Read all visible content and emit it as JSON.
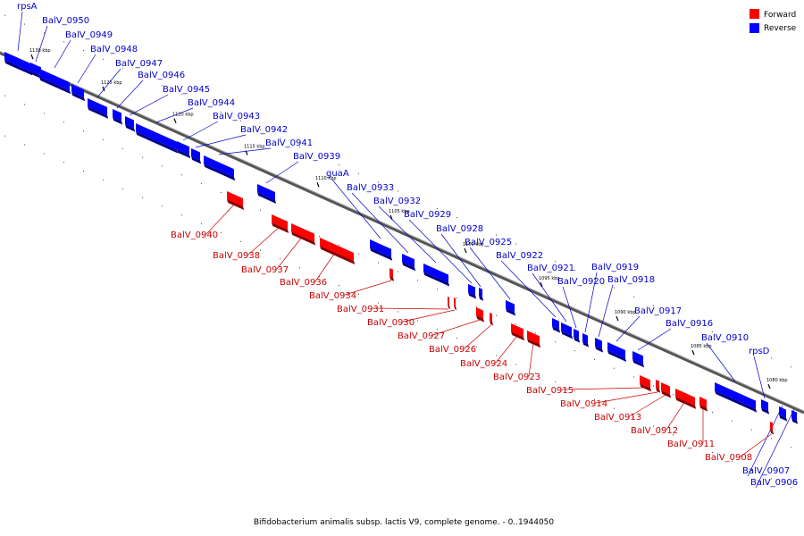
{
  "caption": "Bifidobacterium animalis subsp. lactis V9, complete genome. - 0..1944050",
  "legend": [
    {
      "label": "Forward",
      "color": "#ff0000"
    },
    {
      "label": "Reverse",
      "color": "#0000ff"
    }
  ],
  "colors": {
    "forward": "#ff0000",
    "reverse": "#0000ff",
    "forward_line": "#cc0000",
    "reverse_line": "#0000cc"
  },
  "ticks": [
    {
      "label": "1130 kbp"
    },
    {
      "label": "1125 kbp"
    },
    {
      "label": "1120 kbp"
    },
    {
      "label": "1115 kbp"
    },
    {
      "label": "1110 kbp"
    },
    {
      "label": "1105 kbp"
    },
    {
      "label": "1100 kbp"
    },
    {
      "label": "1095 kbp"
    },
    {
      "label": "1090 kbp"
    },
    {
      "label": "1085 kbp"
    },
    {
      "label": "1080 kbp"
    }
  ],
  "genes": [
    {
      "name": "rpsA",
      "strand": "reverse"
    },
    {
      "name": "BalV_0950",
      "strand": "reverse"
    },
    {
      "name": "BalV_0949",
      "strand": "reverse"
    },
    {
      "name": "BalV_0948",
      "strand": "reverse"
    },
    {
      "name": "BalV_0947",
      "strand": "reverse"
    },
    {
      "name": "BalV_0946",
      "strand": "reverse"
    },
    {
      "name": "BalV_0945",
      "strand": "reverse"
    },
    {
      "name": "BalV_0944",
      "strand": "reverse"
    },
    {
      "name": "BalV_0943",
      "strand": "reverse"
    },
    {
      "name": "BalV_0942",
      "strand": "reverse"
    },
    {
      "name": "BalV_0941",
      "strand": "reverse"
    },
    {
      "name": "BalV_0939",
      "strand": "reverse"
    },
    {
      "name": "guaA",
      "strand": "reverse"
    },
    {
      "name": "BalV_0933",
      "strand": "reverse"
    },
    {
      "name": "BalV_0932",
      "strand": "reverse"
    },
    {
      "name": "BalV_0929",
      "strand": "reverse"
    },
    {
      "name": "BalV_0928",
      "strand": "reverse"
    },
    {
      "name": "BalV_0925",
      "strand": "reverse"
    },
    {
      "name": "BalV_0922",
      "strand": "reverse"
    },
    {
      "name": "BalV_0921",
      "strand": "reverse"
    },
    {
      "name": "BalV_0920",
      "strand": "reverse"
    },
    {
      "name": "BalV_0919",
      "strand": "reverse"
    },
    {
      "name": "BalV_0918",
      "strand": "reverse"
    },
    {
      "name": "BalV_0917",
      "strand": "reverse"
    },
    {
      "name": "BalV_0916",
      "strand": "reverse"
    },
    {
      "name": "BalV_0910",
      "strand": "reverse"
    },
    {
      "name": "rpsD",
      "strand": "reverse"
    },
    {
      "name": "BalV_0907",
      "strand": "reverse"
    },
    {
      "name": "BalV_0906",
      "strand": "reverse"
    },
    {
      "name": "BalV_0940",
      "strand": "forward"
    },
    {
      "name": "BalV_0938",
      "strand": "forward"
    },
    {
      "name": "BalV_0937",
      "strand": "forward"
    },
    {
      "name": "BalV_0936",
      "strand": "forward"
    },
    {
      "name": "BalV_0934",
      "strand": "forward"
    },
    {
      "name": "BalV_0931",
      "strand": "forward"
    },
    {
      "name": "BalV_0930",
      "strand": "forward"
    },
    {
      "name": "BalV_0927",
      "strand": "forward"
    },
    {
      "name": "BalV_0926",
      "strand": "forward"
    },
    {
      "name": "BalV_0924",
      "strand": "forward"
    },
    {
      "name": "BalV_0923",
      "strand": "forward"
    },
    {
      "name": "BalV_0915",
      "strand": "forward"
    },
    {
      "name": "BalV_0914",
      "strand": "forward"
    },
    {
      "name": "BalV_0913",
      "strand": "forward"
    },
    {
      "name": "BalV_0912",
      "strand": "forward"
    },
    {
      "name": "BalV_0911",
      "strand": "forward"
    },
    {
      "name": "BalV_0908",
      "strand": "forward"
    }
  ]
}
